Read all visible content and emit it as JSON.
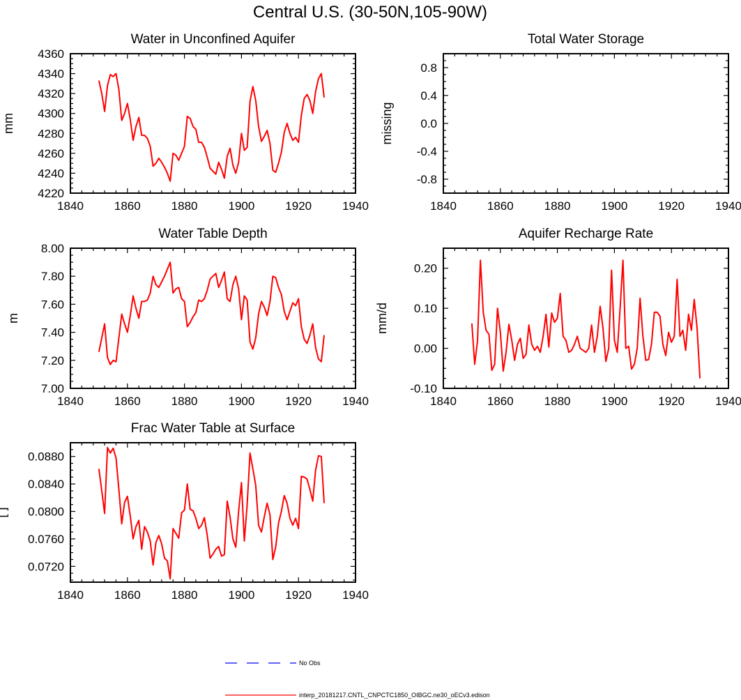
{
  "figure_title": "Central U.S. (30-50N,105-90W)",
  "colors": {
    "model": "#ff0000",
    "obs": "#0000ff",
    "axis": "#000000"
  },
  "legend": [
    {
      "label": "No Obs",
      "style": "dashed",
      "color": "#0000ff"
    },
    {
      "label": "interp_20181217.CNTL_CNPCTC1850_OIBGC.ne30_oECv3.edison",
      "style": "solid",
      "color": "#ff0000"
    }
  ],
  "chart_data": [
    {
      "id": "aquifer",
      "type": "line",
      "title": "Water in Unconfined Aquifer",
      "xlabel": "",
      "ylabel": "mm",
      "xlim": [
        1840,
        1940
      ],
      "ylim": [
        4220,
        4360
      ],
      "xticks": [
        "1840",
        "1860",
        "1880",
        "1900",
        "1920",
        "1940"
      ],
      "yticks": [
        "4220",
        "4240",
        "4260",
        "4280",
        "4300",
        "4320",
        "4340",
        "4360"
      ],
      "series": [
        {
          "name": "interp_20181217.CNTL_CNPCTC1850_OIBGC.ne30_oECv3.edison",
          "x_start": 1850,
          "x_step": 1,
          "values": [
            4333,
            4320,
            4302,
            4328,
            4339,
            4337,
            4340,
            4324,
            4293,
            4300,
            4310,
            4294,
            4273,
            4287,
            4296,
            4278,
            4278,
            4275,
            4267,
            4247,
            4250,
            4255,
            4251,
            4246,
            4240,
            4232,
            4260,
            4258,
            4253,
            4260,
            4267,
            4297,
            4295,
            4287,
            4284,
            4271,
            4271,
            4266,
            4256,
            4245,
            4242,
            4239,
            4251,
            4244,
            4235,
            4257,
            4265,
            4248,
            4240,
            4251,
            4280,
            4263,
            4266,
            4312,
            4327,
            4313,
            4287,
            4272,
            4277,
            4283,
            4270,
            4243,
            4241,
            4250,
            4261,
            4281,
            4290,
            4280,
            4273,
            4276,
            4271,
            4298,
            4315,
            4319,
            4313,
            4300,
            4322,
            4335,
            4340,
            4316
          ]
        }
      ]
    },
    {
      "id": "tws",
      "type": "line",
      "title": "Total Water Storage",
      "xlabel": "",
      "ylabel": "missing",
      "xlim": [
        1840,
        1940
      ],
      "ylim": [
        -1,
        1
      ],
      "xticks": [
        "1840",
        "1860",
        "1880",
        "1900",
        "1920",
        "1940"
      ],
      "yticks": [
        "-0.8",
        "-0.4",
        "0.0",
        "0.4",
        "0.8"
      ],
      "ytick_values": [
        -0.8,
        -0.4,
        0.0,
        0.4,
        0.8
      ],
      "series": []
    },
    {
      "id": "wtd",
      "type": "line",
      "title": "Water Table Depth",
      "xlabel": "",
      "ylabel": "m",
      "xlim": [
        1840,
        1940
      ],
      "ylim": [
        7.0,
        8.0
      ],
      "xticks": [
        "1840",
        "1860",
        "1880",
        "1900",
        "1920",
        "1940"
      ],
      "yticks": [
        "7.00",
        "7.20",
        "7.40",
        "7.60",
        "7.80",
        "8.00"
      ],
      "series": [
        {
          "name": "interp_20181217.CNTL_CNPCTC1850_OIBGC.ne30_oECv3.edison",
          "x_start": 1850,
          "x_step": 1,
          "values": [
            7.26,
            7.36,
            7.46,
            7.22,
            7.17,
            7.2,
            7.19,
            7.36,
            7.53,
            7.46,
            7.4,
            7.52,
            7.66,
            7.57,
            7.5,
            7.62,
            7.62,
            7.63,
            7.68,
            7.8,
            7.74,
            7.72,
            7.76,
            7.8,
            7.85,
            7.9,
            7.68,
            7.71,
            7.72,
            7.64,
            7.62,
            7.44,
            7.47,
            7.51,
            7.54,
            7.63,
            7.62,
            7.64,
            7.7,
            7.78,
            7.8,
            7.82,
            7.72,
            7.77,
            7.83,
            7.64,
            7.62,
            7.74,
            7.8,
            7.71,
            7.49,
            7.66,
            7.63,
            7.33,
            7.28,
            7.36,
            7.53,
            7.62,
            7.58,
            7.52,
            7.62,
            7.8,
            7.79,
            7.72,
            7.67,
            7.55,
            7.49,
            7.55,
            7.61,
            7.59,
            7.64,
            7.44,
            7.35,
            7.32,
            7.38,
            7.46,
            7.29,
            7.21,
            7.19,
            7.38
          ]
        }
      ]
    },
    {
      "id": "recharge",
      "type": "line",
      "title": "Aquifer Recharge Rate",
      "xlabel": "",
      "ylabel": "mm/d",
      "xlim": [
        1840,
        1940
      ],
      "ylim": [
        -0.1,
        0.25
      ],
      "xticks": [
        "1840",
        "1860",
        "1880",
        "1900",
        "1920",
        "1940"
      ],
      "yticks": [
        "-0.10",
        "0.00",
        "0.10",
        "0.20"
      ],
      "ytick_values": [
        -0.1,
        0.0,
        0.1,
        0.2
      ],
      "series": [
        {
          "name": "interp_20181217.CNTL_CNPCTC1850_OIBGC.ne30_oECv3.edison",
          "x_start": 1850,
          "x_step": 1,
          "values": [
            0.062,
            -0.04,
            0.02,
            0.22,
            0.09,
            0.045,
            0.035,
            -0.055,
            -0.04,
            0.1,
            0.04,
            -0.057,
            -0.01,
            0.06,
            0.02,
            -0.03,
            0.01,
            0.025,
            -0.025,
            -0.015,
            0.058,
            0.01,
            -0.005,
            0.005,
            -0.01,
            0.03,
            0.085,
            0.003,
            0.088,
            0.065,
            0.075,
            0.137,
            0.03,
            0.02,
            -0.01,
            -0.005,
            0.01,
            0.03,
            0.0,
            -0.005,
            -0.01,
            0.0,
            0.058,
            -0.01,
            0.03,
            0.105,
            0.05,
            -0.033,
            0.0,
            0.195,
            0.02,
            -0.01,
            0.1,
            0.22,
            0.0,
            0.005,
            -0.052,
            -0.04,
            0.0,
            0.125,
            0.03,
            -0.03,
            -0.028,
            0.01,
            0.09,
            0.09,
            0.08,
            0.01,
            -0.018,
            0.04,
            0.015,
            0.03,
            0.172,
            0.03,
            0.045,
            -0.005,
            0.085,
            0.045,
            0.122,
            0.05,
            -0.075
          ]
        }
      ]
    },
    {
      "id": "fwt",
      "type": "line",
      "title": "Frac Water Table at Surface",
      "xlabel": "",
      "ylabel": "",
      "ylabel_fragment": "[ ]",
      "xlim": [
        1840,
        1940
      ],
      "ylim": [
        0.0697,
        0.09
      ],
      "xticks": [
        "1840",
        "1860",
        "1880",
        "1900",
        "1920",
        "1940"
      ],
      "yticks": [
        "0.0720",
        "0.0760",
        "0.0800",
        "0.0840",
        "0.0880"
      ],
      "ytick_values": [
        0.072,
        0.076,
        0.08,
        0.084,
        0.088
      ],
      "series": [
        {
          "name": "interp_20181217.CNTL_CNPCTC1850_OIBGC.ne30_oECv3.edison",
          "x_start": 1850,
          "x_step": 1,
          "values": [
            0.0862,
            0.083,
            0.0797,
            0.0893,
            0.0885,
            0.0892,
            0.0878,
            0.0832,
            0.0782,
            0.0813,
            0.0822,
            0.0793,
            0.076,
            0.0778,
            0.0787,
            0.0745,
            0.0778,
            0.077,
            0.0757,
            0.0722,
            0.0755,
            0.0765,
            0.0753,
            0.0732,
            0.0728,
            0.0702,
            0.0775,
            0.0768,
            0.0761,
            0.0798,
            0.0802,
            0.084,
            0.0803,
            0.0801,
            0.079,
            0.0775,
            0.078,
            0.0791,
            0.0765,
            0.0732,
            0.0738,
            0.0745,
            0.0749,
            0.0735,
            0.0737,
            0.0815,
            0.0792,
            0.076,
            0.0748,
            0.08,
            0.0842,
            0.0757,
            0.081,
            0.0885,
            0.0862,
            0.0838,
            0.078,
            0.077,
            0.0792,
            0.0812,
            0.0795,
            0.073,
            0.0748,
            0.0783,
            0.08,
            0.0823,
            0.0812,
            0.079,
            0.078,
            0.079,
            0.0775,
            0.0851,
            0.085,
            0.0847,
            0.0832,
            0.0815,
            0.086,
            0.0881,
            0.088,
            0.0812
          ]
        }
      ]
    }
  ]
}
